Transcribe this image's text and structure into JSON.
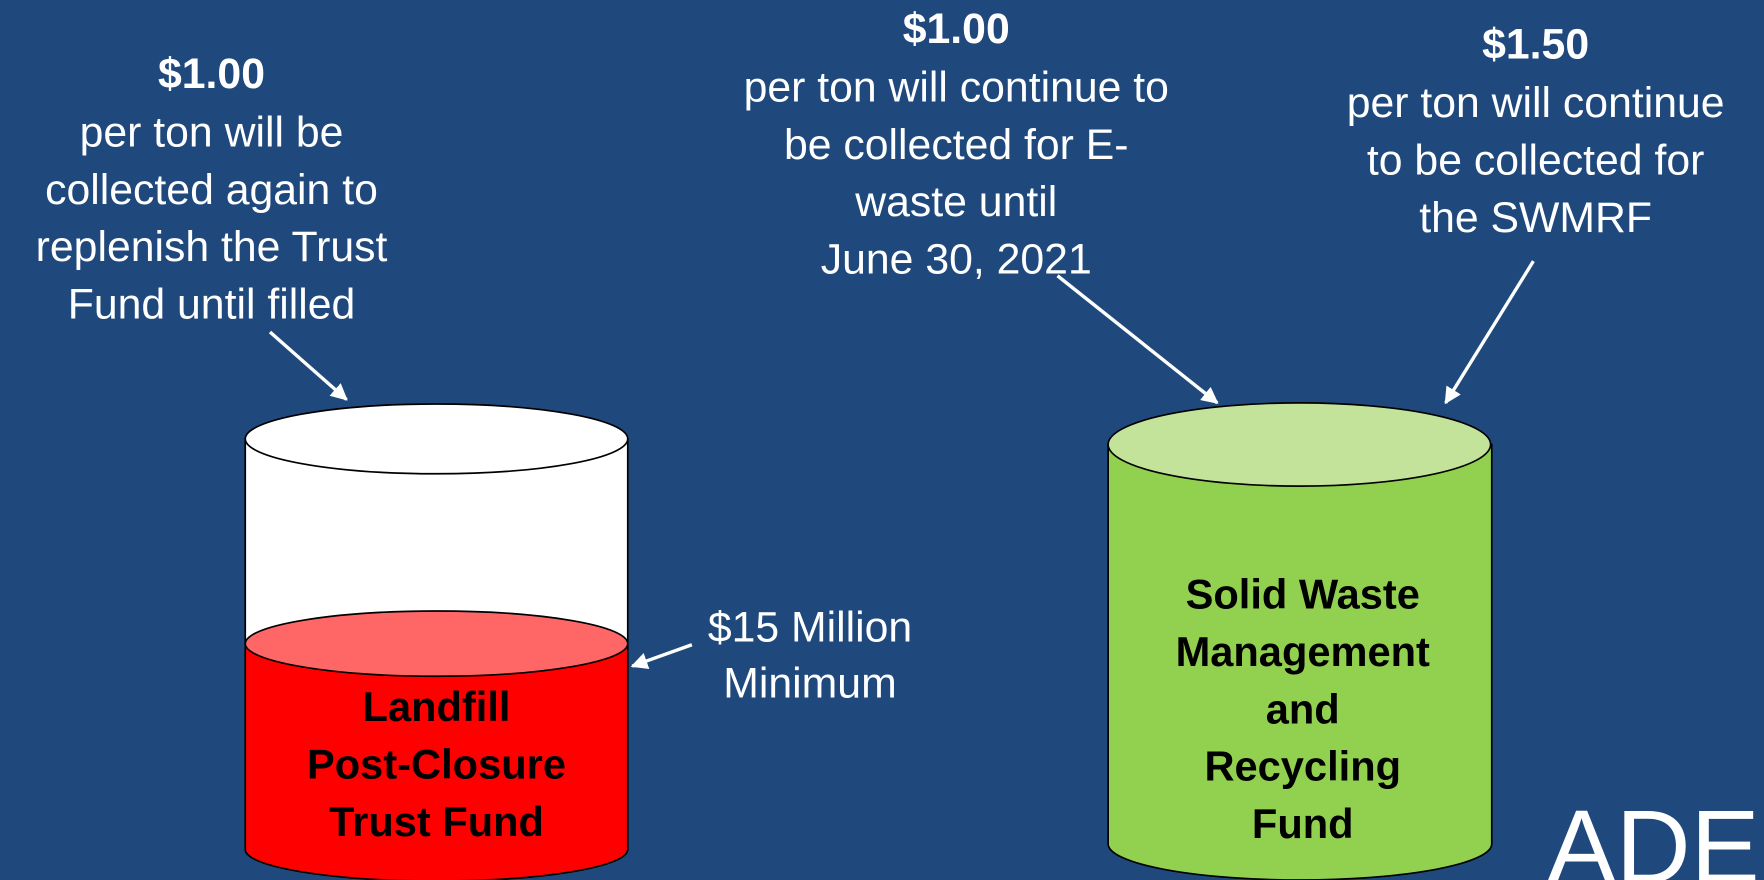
{
  "callouts": [
    {
      "amount": "$1.00",
      "lines": [
        "per ton will be",
        "collected again to",
        "replenish the Trust",
        "Fund until filled"
      ]
    },
    {
      "amount": "$1.00",
      "lines": [
        "per ton will continue to",
        "be collected for E-",
        "waste until",
        "June 30, 2021"
      ]
    },
    {
      "amount": "$1.50",
      "lines": [
        "per ton will continue",
        "to be collected for",
        "the SWMRF"
      ]
    }
  ],
  "funds": [
    {
      "lines": [
        "Landfill",
        "Post-Closure",
        "Trust  Fund"
      ]
    },
    {
      "lines": [
        "Solid Waste",
        "Management",
        "and",
        "Recycling",
        "Fund"
      ]
    }
  ],
  "level_label": [
    "$15 Million",
    "Minimum"
  ],
  "logo": "ADEQ"
}
